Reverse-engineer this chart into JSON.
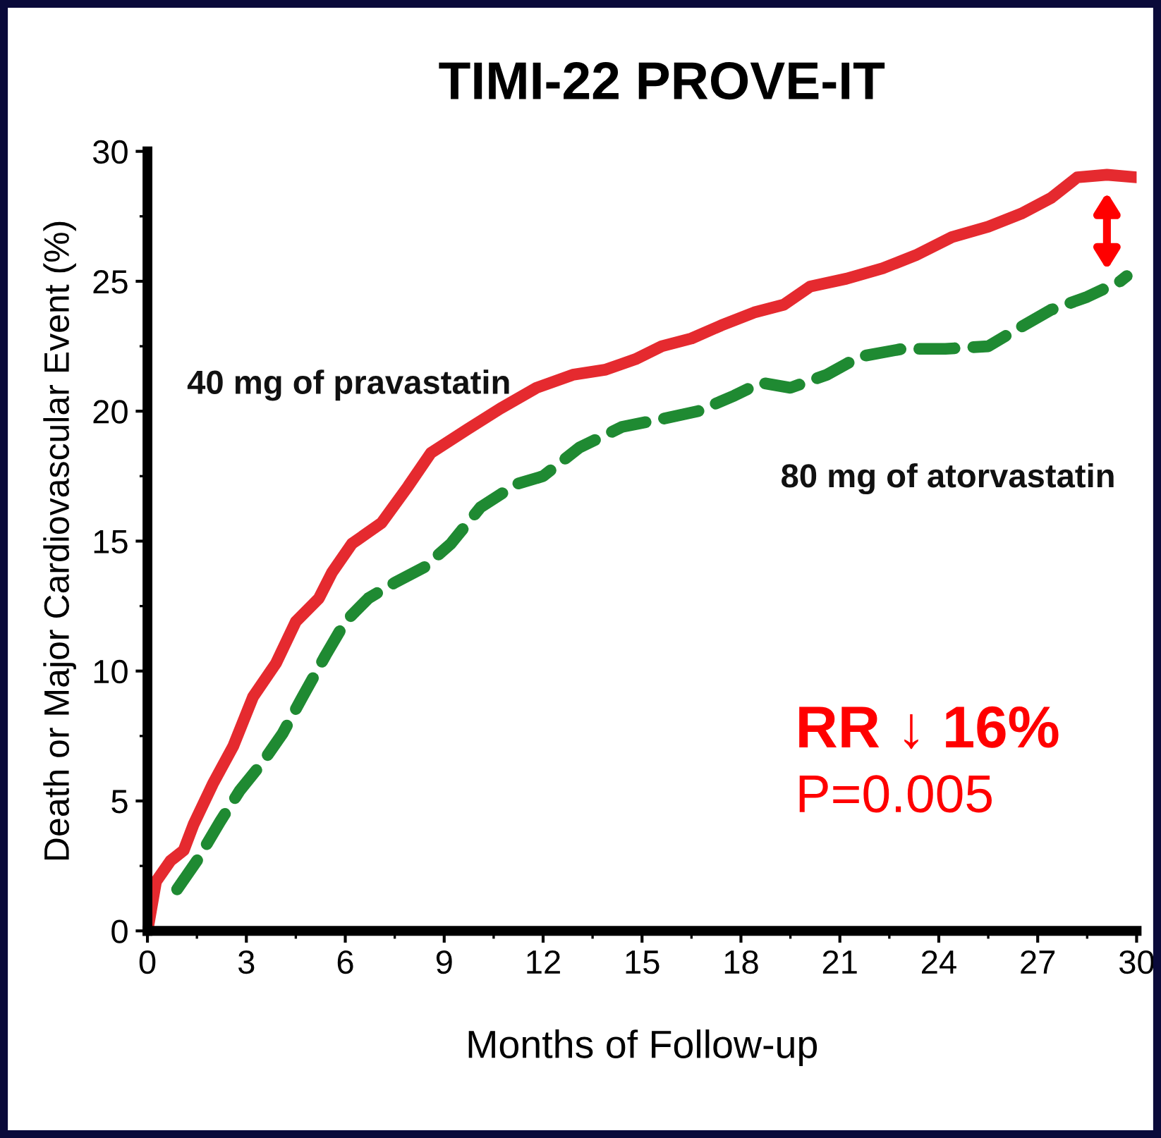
{
  "chart_data": {
    "type": "line",
    "title": "TIMI-22 PROVE-IT",
    "xlabel": "Months of Follow-up",
    "ylabel": "Death or Major Cardiovascular Event (%)",
    "xlim": [
      0,
      30
    ],
    "xticks": [
      0,
      3,
      6,
      9,
      12,
      15,
      18,
      21,
      24,
      27,
      30
    ],
    "ylim": [
      0,
      30
    ],
    "yticks": [
      0,
      5,
      10,
      15,
      20,
      25,
      30
    ],
    "grid": false,
    "legend": false,
    "series": [
      {
        "name": "40 mg of pravastatin",
        "color": "#e52a2f",
        "line_style": "solid",
        "x": [
          0,
          0.26,
          0.7,
          1.1,
          1.4,
          2,
          2.6,
          3.2,
          3.9,
          4.5,
          5.2,
          5.6,
          6.2,
          7.1,
          7.9,
          8.6,
          9.7,
          10.7,
          11.8,
          12.9,
          13.9,
          14.8,
          15.6,
          16.5,
          17.4,
          18.4,
          19.3,
          20.1,
          21.2,
          22.3,
          23.3,
          24.4,
          25.5,
          26.5,
          27.4,
          28.2,
          29.1,
          30
        ],
        "values": [
          0,
          1.9,
          2.7,
          3.1,
          4.1,
          5.7,
          7.1,
          9.0,
          10.3,
          11.9,
          12.8,
          13.8,
          14.9,
          15.7,
          17.1,
          18.4,
          19.3,
          20.1,
          20.9,
          21.4,
          21.6,
          22.0,
          22.5,
          22.8,
          23.3,
          23.8,
          24.1,
          24.8,
          25.1,
          25.5,
          26.0,
          26.7,
          27.1,
          27.6,
          28.2,
          29.0,
          29.1,
          29.0
        ]
      },
      {
        "name": "80 mg of atorvastatin",
        "color": "#1f8a32",
        "line_style": "dashed",
        "x": [
          0.9,
          1.5,
          2.2,
          2.8,
          3.5,
          4.1,
          4.7,
          5.4,
          6.0,
          6.7,
          7.5,
          8.4,
          9.2,
          10.1,
          11.2,
          12.0,
          13.1,
          14.4,
          15.6,
          16.7,
          17.8,
          18.6,
          19.5,
          20.6,
          21.6,
          22.9,
          24.2,
          25.5,
          26.3,
          27.4,
          28.5,
          29.5,
          29.7
        ],
        "values": [
          1.6,
          2.7,
          4.2,
          5.4,
          6.5,
          7.6,
          9.0,
          10.6,
          11.9,
          12.8,
          13.4,
          14.0,
          14.9,
          16.3,
          17.2,
          17.5,
          18.6,
          19.4,
          19.7,
          20.0,
          20.6,
          21.1,
          20.9,
          21.4,
          22.1,
          22.4,
          22.4,
          22.5,
          23.1,
          23.9,
          24.4,
          25.0,
          25.2
        ]
      }
    ],
    "annotations": [
      "RR ↓ 16%",
      "P=0.005"
    ]
  }
}
